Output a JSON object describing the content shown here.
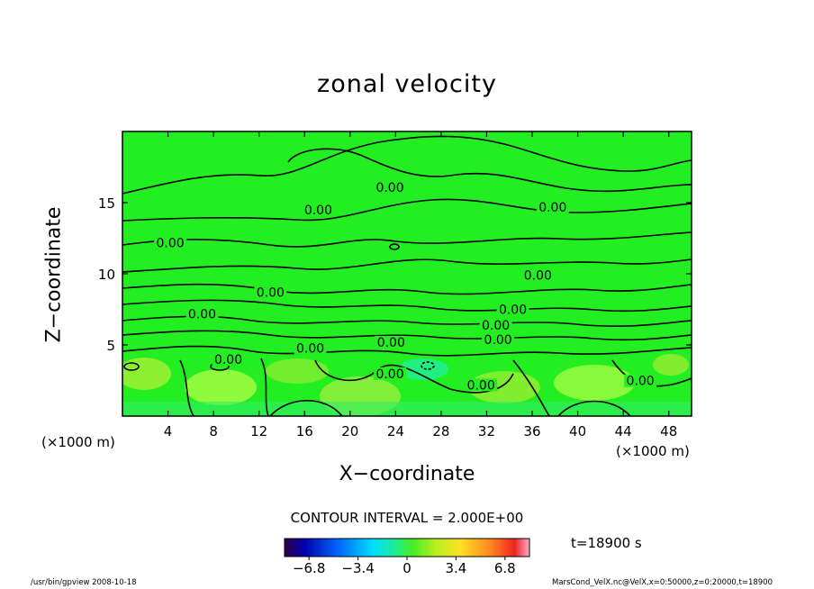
{
  "chart_data": {
    "type": "contour",
    "title": "zonal velocity",
    "xlabel": "X−coordinate",
    "ylabel": "Z−coordinate",
    "x_unit_left": "(×1000 m)",
    "x_unit_right": "(×1000 m)",
    "xlim": [
      0,
      50
    ],
    "ylim": [
      0,
      20
    ],
    "x_ticks": [
      "4",
      "8",
      "12",
      "16",
      "20",
      "24",
      "28",
      "32",
      "36",
      "40",
      "44",
      "48"
    ],
    "y_ticks": [
      "5",
      "10",
      "15"
    ],
    "contour_interval": "CONTOUR INTERVAL = 2.000E+00",
    "contour_labels": [
      {
        "text": "0.00",
        "x": 23.5,
        "z": 15.9
      },
      {
        "text": "0.00",
        "x": 17.2,
        "z": 14.3
      },
      {
        "text": "0.00",
        "x": 37.8,
        "z": 14.5
      },
      {
        "text": "0.00",
        "x": 4.2,
        "z": 12.0
      },
      {
        "text": "0.00",
        "x": 13.0,
        "z": 8.5
      },
      {
        "text": "0.00",
        "x": 7.0,
        "z": 7.0
      },
      {
        "text": "0.00",
        "x": 36.5,
        "z": 9.7
      },
      {
        "text": "0.00",
        "x": 34.3,
        "z": 7.3
      },
      {
        "text": "0.00",
        "x": 32.8,
        "z": 6.2
      },
      {
        "text": "0.00",
        "x": 33.0,
        "z": 5.2
      },
      {
        "text": "0.00",
        "x": 16.5,
        "z": 4.6
      },
      {
        "text": "0.00",
        "x": 23.6,
        "z": 5.0
      },
      {
        "text": "0.00",
        "x": 9.3,
        "z": 3.8
      },
      {
        "text": "0.00",
        "x": 23.5,
        "z": 2.8
      },
      {
        "text": "0.00",
        "x": 31.5,
        "z": 2.0
      },
      {
        "text": "0.00",
        "x": 45.5,
        "z": 2.3
      }
    ],
    "colorbar": {
      "ticks": [
        "−6.8",
        "−3.4",
        "0",
        "3.4",
        "6.8"
      ],
      "range": [
        -8.5,
        8.5
      ]
    },
    "time_label": "t=18900 s",
    "colors": {
      "field": "#22ee22",
      "warm_patch": "#aaff44",
      "cool_patch": "#22ee88"
    }
  },
  "footer": {
    "left": "/usr/bin/gpview   2008-10-18",
    "right": "MarsCond_VelX.nc@VelX,x=0:50000,z=0:20000,t=18900"
  }
}
